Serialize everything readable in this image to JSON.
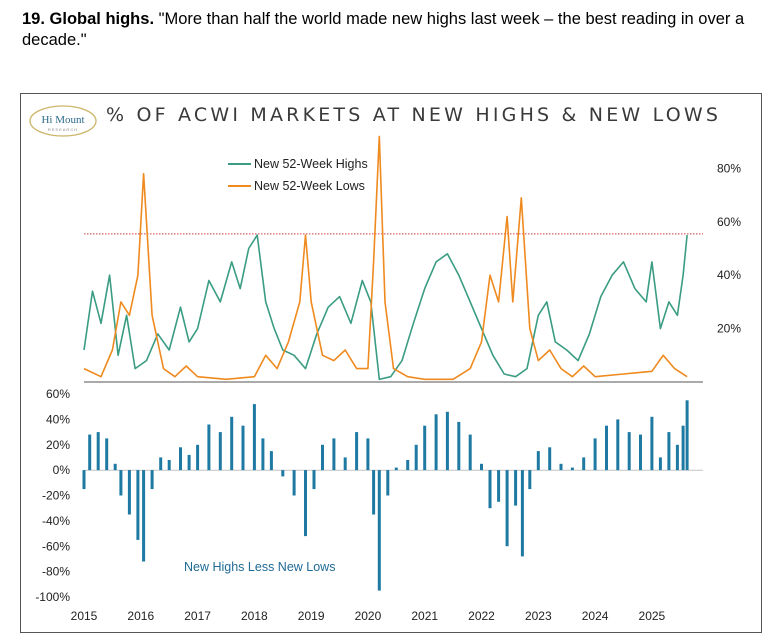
{
  "heading": {
    "number": "19. Global highs.",
    "text": " \"More than half the world made new highs last week – the best reading in over a decade.\""
  },
  "logo": {
    "line1": "Hi Mount",
    "line2": "RESEARCH"
  },
  "colors": {
    "highs": "#3a9c82",
    "lows": "#ef8a1f",
    "diff": "#1f7aa3",
    "reference": "#d43c3c"
  },
  "chart_data": [
    {
      "type": "line",
      "title": "% OF ACWI MARKETS AT NEW HIGHS & NEW LOWS",
      "x_range": [
        2015,
        2025.9
      ],
      "ylim": [
        0,
        1.0
      ],
      "y_ticks": [
        "20%",
        "40%",
        "60%",
        "80%"
      ],
      "y_tick_values": [
        0.2,
        0.4,
        0.6,
        0.8
      ],
      "reference_line": 0.555,
      "legend": [
        "New 52-Week Highs",
        "New 52-Week Lows"
      ],
      "series": [
        {
          "name": "New 52-Week Highs",
          "points": [
            [
              2015.0,
              0.12
            ],
            [
              2015.15,
              0.34
            ],
            [
              2015.3,
              0.22
            ],
            [
              2015.45,
              0.4
            ],
            [
              2015.6,
              0.1
            ],
            [
              2015.75,
              0.25
            ],
            [
              2015.9,
              0.05
            ],
            [
              2016.1,
              0.08
            ],
            [
              2016.3,
              0.18
            ],
            [
              2016.5,
              0.12
            ],
            [
              2016.7,
              0.28
            ],
            [
              2016.85,
              0.15
            ],
            [
              2017.0,
              0.2
            ],
            [
              2017.2,
              0.38
            ],
            [
              2017.4,
              0.3
            ],
            [
              2017.6,
              0.45
            ],
            [
              2017.75,
              0.35
            ],
            [
              2017.9,
              0.5
            ],
            [
              2018.05,
              0.55
            ],
            [
              2018.2,
              0.3
            ],
            [
              2018.35,
              0.2
            ],
            [
              2018.5,
              0.12
            ],
            [
              2018.7,
              0.1
            ],
            [
              2018.9,
              0.05
            ],
            [
              2019.1,
              0.18
            ],
            [
              2019.3,
              0.28
            ],
            [
              2019.5,
              0.32
            ],
            [
              2019.7,
              0.22
            ],
            [
              2019.9,
              0.38
            ],
            [
              2020.05,
              0.3
            ],
            [
              2020.2,
              0.01
            ],
            [
              2020.4,
              0.02
            ],
            [
              2020.6,
              0.08
            ],
            [
              2020.8,
              0.22
            ],
            [
              2021.0,
              0.35
            ],
            [
              2021.2,
              0.45
            ],
            [
              2021.4,
              0.48
            ],
            [
              2021.6,
              0.4
            ],
            [
              2021.8,
              0.3
            ],
            [
              2022.0,
              0.2
            ],
            [
              2022.2,
              0.1
            ],
            [
              2022.4,
              0.03
            ],
            [
              2022.6,
              0.02
            ],
            [
              2022.8,
              0.05
            ],
            [
              2023.0,
              0.25
            ],
            [
              2023.15,
              0.3
            ],
            [
              2023.3,
              0.15
            ],
            [
              2023.5,
              0.12
            ],
            [
              2023.7,
              0.08
            ],
            [
              2023.9,
              0.18
            ],
            [
              2024.1,
              0.32
            ],
            [
              2024.3,
              0.4
            ],
            [
              2024.5,
              0.45
            ],
            [
              2024.7,
              0.35
            ],
            [
              2024.9,
              0.3
            ],
            [
              2025.0,
              0.45
            ],
            [
              2025.15,
              0.2
            ],
            [
              2025.3,
              0.3
            ],
            [
              2025.45,
              0.25
            ],
            [
              2025.55,
              0.4
            ],
            [
              2025.62,
              0.55
            ]
          ]
        },
        {
          "name": "New 52-Week Lows",
          "points": [
            [
              2015.0,
              0.05
            ],
            [
              2015.3,
              0.02
            ],
            [
              2015.5,
              0.12
            ],
            [
              2015.65,
              0.3
            ],
            [
              2015.8,
              0.25
            ],
            [
              2015.95,
              0.4
            ],
            [
              2016.05,
              0.78
            ],
            [
              2016.2,
              0.25
            ],
            [
              2016.4,
              0.05
            ],
            [
              2016.6,
              0.02
            ],
            [
              2016.8,
              0.06
            ],
            [
              2017.0,
              0.02
            ],
            [
              2017.5,
              0.01
            ],
            [
              2018.0,
              0.02
            ],
            [
              2018.2,
              0.1
            ],
            [
              2018.4,
              0.05
            ],
            [
              2018.6,
              0.15
            ],
            [
              2018.8,
              0.3
            ],
            [
              2018.9,
              0.55
            ],
            [
              2019.0,
              0.3
            ],
            [
              2019.2,
              0.1
            ],
            [
              2019.4,
              0.08
            ],
            [
              2019.6,
              0.12
            ],
            [
              2019.8,
              0.05
            ],
            [
              2020.0,
              0.05
            ],
            [
              2020.1,
              0.45
            ],
            [
              2020.2,
              0.92
            ],
            [
              2020.3,
              0.3
            ],
            [
              2020.45,
              0.05
            ],
            [
              2020.7,
              0.02
            ],
            [
              2021.0,
              0.01
            ],
            [
              2021.5,
              0.01
            ],
            [
              2021.8,
              0.05
            ],
            [
              2022.0,
              0.15
            ],
            [
              2022.15,
              0.4
            ],
            [
              2022.3,
              0.3
            ],
            [
              2022.45,
              0.62
            ],
            [
              2022.55,
              0.3
            ],
            [
              2022.7,
              0.69
            ],
            [
              2022.85,
              0.2
            ],
            [
              2023.0,
              0.08
            ],
            [
              2023.2,
              0.12
            ],
            [
              2023.4,
              0.05
            ],
            [
              2023.6,
              0.02
            ],
            [
              2023.8,
              0.06
            ],
            [
              2024.0,
              0.02
            ],
            [
              2024.5,
              0.03
            ],
            [
              2025.0,
              0.04
            ],
            [
              2025.2,
              0.1
            ],
            [
              2025.4,
              0.05
            ],
            [
              2025.62,
              0.02
            ]
          ]
        }
      ]
    },
    {
      "type": "bar",
      "annotation": "New Highs Less New Lows",
      "x_ticks": [
        "2015",
        "2016",
        "2017",
        "2018",
        "2019",
        "2020",
        "2021",
        "2022",
        "2023",
        "2024",
        "2025"
      ],
      "x_tick_values": [
        2015,
        2016,
        2017,
        2018,
        2019,
        2020,
        2021,
        2022,
        2023,
        2024,
        2025
      ],
      "ylim": [
        -1.0,
        0.6
      ],
      "y_ticks": [
        "60%",
        "40%",
        "20%",
        "0%",
        "-20%",
        "-40%",
        "-60%",
        "-80%",
        "-100%"
      ],
      "y_tick_values": [
        0.6,
        0.4,
        0.2,
        0,
        -0.2,
        -0.4,
        -0.6,
        -0.8,
        -1.0
      ],
      "x_range": [
        2015,
        2025.9
      ],
      "points": [
        [
          2015.0,
          -0.15
        ],
        [
          2015.1,
          0.28
        ],
        [
          2015.25,
          0.3
        ],
        [
          2015.4,
          0.25
        ],
        [
          2015.55,
          0.05
        ],
        [
          2015.65,
          -0.2
        ],
        [
          2015.8,
          -0.35
        ],
        [
          2015.95,
          -0.55
        ],
        [
          2016.05,
          -0.72
        ],
        [
          2016.2,
          -0.15
        ],
        [
          2016.35,
          0.1
        ],
        [
          2016.5,
          0.08
        ],
        [
          2016.7,
          0.18
        ],
        [
          2016.85,
          0.12
        ],
        [
          2017.0,
          0.2
        ],
        [
          2017.2,
          0.36
        ],
        [
          2017.4,
          0.3
        ],
        [
          2017.6,
          0.42
        ],
        [
          2017.8,
          0.35
        ],
        [
          2018.0,
          0.52
        ],
        [
          2018.15,
          0.25
        ],
        [
          2018.3,
          0.15
        ],
        [
          2018.5,
          -0.05
        ],
        [
          2018.7,
          -0.2
        ],
        [
          2018.9,
          -0.52
        ],
        [
          2019.05,
          -0.15
        ],
        [
          2019.2,
          0.2
        ],
        [
          2019.4,
          0.25
        ],
        [
          2019.6,
          0.1
        ],
        [
          2019.8,
          0.3
        ],
        [
          2020.0,
          0.25
        ],
        [
          2020.1,
          -0.35
        ],
        [
          2020.2,
          -0.95
        ],
        [
          2020.35,
          -0.2
        ],
        [
          2020.5,
          0.02
        ],
        [
          2020.7,
          0.08
        ],
        [
          2020.85,
          0.2
        ],
        [
          2021.0,
          0.35
        ],
        [
          2021.2,
          0.44
        ],
        [
          2021.4,
          0.46
        ],
        [
          2021.6,
          0.38
        ],
        [
          2021.8,
          0.28
        ],
        [
          2022.0,
          0.05
        ],
        [
          2022.15,
          -0.3
        ],
        [
          2022.3,
          -0.25
        ],
        [
          2022.45,
          -0.6
        ],
        [
          2022.6,
          -0.28
        ],
        [
          2022.72,
          -0.68
        ],
        [
          2022.85,
          -0.15
        ],
        [
          2023.0,
          0.15
        ],
        [
          2023.2,
          0.18
        ],
        [
          2023.4,
          0.05
        ],
        [
          2023.6,
          0.02
        ],
        [
          2023.8,
          0.1
        ],
        [
          2024.0,
          0.25
        ],
        [
          2024.2,
          0.35
        ],
        [
          2024.4,
          0.4
        ],
        [
          2024.6,
          0.3
        ],
        [
          2024.8,
          0.28
        ],
        [
          2025.0,
          0.42
        ],
        [
          2025.15,
          0.1
        ],
        [
          2025.3,
          0.3
        ],
        [
          2025.45,
          0.2
        ],
        [
          2025.55,
          0.35
        ],
        [
          2025.62,
          0.55
        ]
      ]
    }
  ]
}
